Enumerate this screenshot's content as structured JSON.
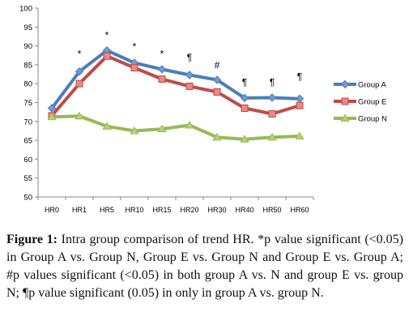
{
  "chart_data": {
    "type": "line",
    "title": "",
    "xlabel": "",
    "ylabel": "",
    "ylim": [
      50,
      100
    ],
    "yticks": [
      "50",
      "55",
      "60",
      "65",
      "70",
      "75",
      "80",
      "85",
      "90",
      "95",
      "100"
    ],
    "categories": [
      "HR0",
      "HR1",
      "HR5",
      "HR10",
      "HR15",
      "HR20",
      "HR30",
      "HR40",
      "HR50",
      "HR60"
    ],
    "series": [
      {
        "name": "Group A",
        "values": [
          73.5,
          83.2,
          88.8,
          85.5,
          83.8,
          82.3,
          81.0,
          76.2,
          76.3,
          76.0
        ],
        "color": "#4A7EBB",
        "marker": "diamond"
      },
      {
        "name": "Group E",
        "values": [
          71.5,
          80.0,
          87.3,
          84.2,
          81.2,
          79.3,
          77.8,
          73.5,
          72.0,
          74.2
        ],
        "color": "#BE4B48",
        "marker": "square"
      },
      {
        "name": "Group N",
        "values": [
          71.2,
          71.4,
          68.7,
          67.5,
          68.0,
          69.0,
          65.8,
          65.3,
          65.8,
          66.1
        ],
        "color": "#98B954",
        "marker": "triangle"
      }
    ],
    "annotations": [
      {
        "category": "HR1",
        "text": "*",
        "y": 87.0
      },
      {
        "category": "HR5",
        "text": "*",
        "y": 92.0
      },
      {
        "category": "HR10",
        "text": "*",
        "y": 89.0
      },
      {
        "category": "HR15",
        "text": "*",
        "y": 87.0
      },
      {
        "category": "HR20",
        "text": "¶",
        "y": 86.0
      },
      {
        "category": "HR30",
        "text": "#",
        "y": 84.0
      },
      {
        "category": "HR40",
        "text": "¶",
        "y": 79.5
      },
      {
        "category": "HR50",
        "text": "¶",
        "y": 79.5
      },
      {
        "category": "HR60",
        "text": "¶",
        "y": 81.0
      }
    ],
    "legend_position": "right",
    "grid": false
  },
  "caption": {
    "label": "Figure 1:",
    "text": " Intra group comparison of trend HR. *p value significant (<0.05) in Group A vs. Group N, Group E vs. Group N and Group E vs. Group A; #p values significant (<0.05) in both group A vs. N and group E vs. group N; ¶p value significant (0.05) in only in group A vs. group N."
  }
}
